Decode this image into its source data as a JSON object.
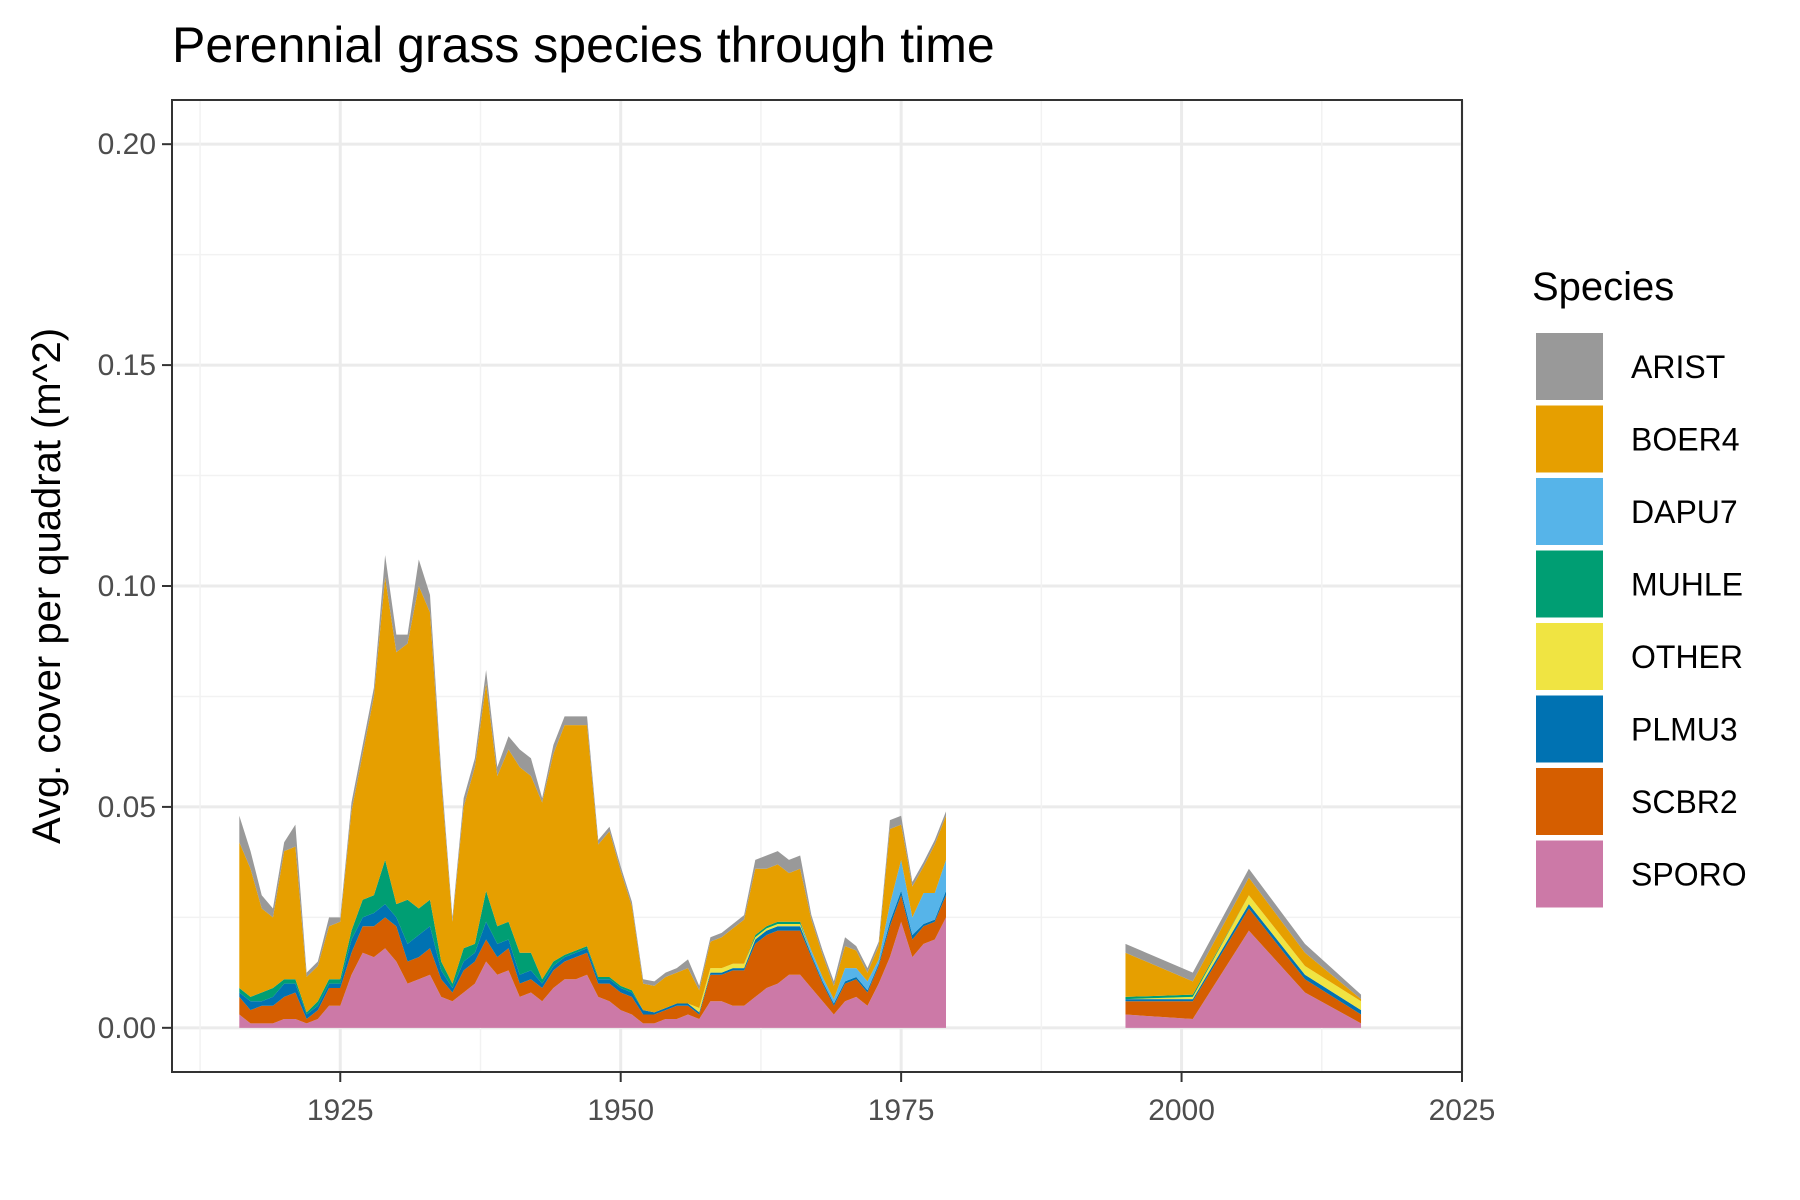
{
  "chart_data": {
    "type": "area",
    "stacked": true,
    "title": "Perennial grass species through time",
    "xlabel": "",
    "ylabel": "Avg. cover per quadrat (m^2)",
    "xlim": [
      1910,
      2025
    ],
    "ylim": [
      -0.01,
      0.21
    ],
    "xticks": [
      1925,
      1950,
      1975,
      2000,
      2025
    ],
    "yticks": [
      0.0,
      0.05,
      0.1,
      0.15,
      0.2
    ],
    "ytick_labels": [
      "0.00",
      "0.05",
      "0.10",
      "0.15",
      "0.20"
    ],
    "grid": true,
    "legend": {
      "title": "Species",
      "position": "right"
    },
    "segments": [
      {
        "x": [
          1916,
          1917,
          1918,
          1919,
          1920,
          1921,
          1922,
          1923,
          1924,
          1925,
          1926,
          1927,
          1928,
          1929,
          1930,
          1931,
          1932,
          1933,
          1934,
          1935,
          1936,
          1937,
          1938,
          1939,
          1940,
          1941,
          1942,
          1943,
          1944,
          1945,
          1946,
          1947,
          1948,
          1949,
          1950,
          1951,
          1952,
          1953,
          1954,
          1955,
          1956,
          1957,
          1958,
          1959,
          1960,
          1961,
          1962,
          1963,
          1964,
          1965,
          1966,
          1967,
          1968,
          1969,
          1970,
          1971,
          1972,
          1973,
          1974,
          1975,
          1976,
          1977,
          1978,
          1979
        ]
      },
      {
        "x": [
          1995,
          2001,
          2006,
          2011,
          2016
        ]
      }
    ],
    "series": [
      {
        "name": "SPORO",
        "color": "#CC79A7",
        "values": [
          [
            0.003,
            0.001,
            0.001,
            0.001,
            0.002,
            0.002,
            0.001,
            0.002,
            0.005,
            0.005,
            0.012,
            0.017,
            0.016,
            0.018,
            0.015,
            0.01,
            0.011,
            0.012,
            0.007,
            0.006,
            0.008,
            0.01,
            0.015,
            0.012,
            0.013,
            0.007,
            0.008,
            0.006,
            0.009,
            0.011,
            0.011,
            0.012,
            0.007,
            0.006,
            0.004,
            0.003,
            0.001,
            0.001,
            0.002,
            0.002,
            0.003,
            0.002,
            0.006,
            0.006,
            0.005,
            0.005,
            0.007,
            0.009,
            0.01,
            0.012,
            0.012,
            0.009,
            0.006,
            0.003,
            0.006,
            0.007,
            0.005,
            0.01,
            0.016,
            0.024,
            0.016,
            0.019,
            0.02,
            0.025
          ],
          [
            0.003,
            0.002,
            0.022,
            0.008,
            0.001
          ]
        ]
      },
      {
        "name": "SCBR2",
        "color": "#D55E00",
        "values": [
          [
            0.004,
            0.003,
            0.004,
            0.004,
            0.005,
            0.006,
            0.001,
            0.002,
            0.004,
            0.004,
            0.005,
            0.006,
            0.007,
            0.007,
            0.008,
            0.005,
            0.005,
            0.006,
            0.004,
            0.002,
            0.005,
            0.005,
            0.005,
            0.004,
            0.005,
            0.003,
            0.003,
            0.003,
            0.004,
            0.004,
            0.005,
            0.005,
            0.003,
            0.004,
            0.004,
            0.004,
            0.002,
            0.002,
            0.002,
            0.003,
            0.002,
            0.001,
            0.006,
            0.006,
            0.008,
            0.008,
            0.012,
            0.012,
            0.012,
            0.01,
            0.01,
            0.007,
            0.004,
            0.002,
            0.004,
            0.004,
            0.003,
            0.004,
            0.007,
            0.006,
            0.004,
            0.004,
            0.004,
            0.005
          ],
          [
            0.003,
            0.004,
            0.005,
            0.003,
            0.002
          ]
        ]
      },
      {
        "name": "PLMU3",
        "color": "#0072B2",
        "values": [
          [
            0.001,
            0.002,
            0.001,
            0.002,
            0.003,
            0.002,
            0.001,
            0.001,
            0.001,
            0.001,
            0.003,
            0.002,
            0.003,
            0.003,
            0.002,
            0.004,
            0.005,
            0.005,
            0.002,
            0.001,
            0.002,
            0.002,
            0.004,
            0.003,
            0.002,
            0.002,
            0.002,
            0.001,
            0.001,
            0.001,
            0.001,
            0.001,
            0.001,
            0.001,
            0.001,
            0.001,
            0.001,
            0.0005,
            0.0005,
            0.0005,
            0.0005,
            0.0005,
            0.0005,
            0.0005,
            0.0005,
            0.0005,
            0.001,
            0.001,
            0.001,
            0.001,
            0.001,
            0.0005,
            0.0005,
            0.0005,
            0.0005,
            0.0005,
            0.0005,
            0.0005,
            0.001,
            0.001,
            0.001,
            0.0005,
            0.0005,
            0.001
          ],
          [
            0.0005,
            0.0005,
            0.001,
            0.001,
            0.001
          ]
        ]
      },
      {
        "name": "OTHER",
        "color": "#F0E442",
        "values": [
          [
            0.0,
            0.0,
            0.0,
            0.0,
            0.0,
            0.0,
            0.0,
            0.0,
            0.0,
            0.0,
            0.0,
            0.0,
            0.0,
            0.0,
            0.0,
            0.0,
            0.0,
            0.0,
            0.0,
            0.0,
            0.0,
            0.0,
            0.0,
            0.0,
            0.0,
            0.0,
            0.0,
            0.0,
            0.0,
            0.0,
            0.0,
            0.0,
            0.0,
            0.0,
            0.0,
            0.0,
            0.0,
            0.0,
            0.0,
            0.0,
            0.0,
            0.001,
            0.001,
            0.001,
            0.001,
            0.001,
            0.0005,
            0.0005,
            0.0005,
            0.0005,
            0.0005,
            0.0,
            0.0,
            0.0,
            0.0,
            0.0,
            0.0,
            0.0,
            0.0,
            0.0,
            0.0,
            0.0,
            0.0,
            0.0
          ],
          [
            0.0,
            0.0005,
            0.002,
            0.002,
            0.002
          ]
        ]
      },
      {
        "name": "MUHLE",
        "color": "#009E73",
        "values": [
          [
            0.001,
            0.001,
            0.002,
            0.002,
            0.001,
            0.001,
            0.0005,
            0.001,
            0.001,
            0.001,
            0.002,
            0.004,
            0.004,
            0.01,
            0.003,
            0.01,
            0.006,
            0.006,
            0.002,
            0.001,
            0.003,
            0.002,
            0.007,
            0.004,
            0.004,
            0.005,
            0.004,
            0.001,
            0.001,
            0.0005,
            0.0005,
            0.0005,
            0.0005,
            0.0005,
            0.0005,
            0.0005,
            0.0,
            0.0,
            0.0,
            0.0,
            0.0,
            0.0,
            0.0,
            0.0,
            0.0,
            0.0,
            0.0005,
            0.0005,
            0.0005,
            0.0005,
            0.0005,
            0.0,
            0.0,
            0.0,
            0.0,
            0.0,
            0.0,
            0.0,
            0.0,
            0.0,
            0.0,
            0.0,
            0.0,
            0.0
          ],
          [
            0.0005,
            0.0005,
            0.0,
            0.0,
            0.0
          ]
        ]
      },
      {
        "name": "DAPU7",
        "color": "#56B4E9",
        "values": [
          [
            0.0,
            0.0,
            0.0,
            0.0,
            0.0,
            0.0,
            0.0,
            0.0,
            0.0,
            0.0,
            0.0,
            0.0,
            0.0,
            0.0,
            0.0,
            0.0,
            0.0,
            0.0,
            0.0,
            0.0,
            0.0,
            0.0,
            0.0,
            0.0,
            0.0,
            0.0,
            0.0,
            0.0,
            0.0,
            0.0,
            0.0,
            0.0,
            0.0,
            0.0,
            0.0,
            0.0,
            0.0,
            0.0,
            0.0,
            0.0,
            0.0,
            0.0,
            0.0,
            0.0,
            0.0,
            0.0,
            0.0,
            0.0,
            0.0,
            0.0,
            0.0,
            0.001,
            0.001,
            0.001,
            0.003,
            0.002,
            0.002,
            0.001,
            0.004,
            0.007,
            0.004,
            0.007,
            0.006,
            0.007
          ],
          [
            0.0,
            0.0,
            0.0,
            0.0,
            0.0
          ]
        ]
      },
      {
        "name": "BOER4",
        "color": "#E69F00",
        "values": [
          [
            0.033,
            0.029,
            0.019,
            0.016,
            0.029,
            0.03,
            0.008,
            0.008,
            0.012,
            0.013,
            0.027,
            0.033,
            0.045,
            0.064,
            0.057,
            0.058,
            0.073,
            0.065,
            0.041,
            0.014,
            0.032,
            0.04,
            0.047,
            0.034,
            0.039,
            0.042,
            0.04,
            0.04,
            0.047,
            0.052,
            0.051,
            0.05,
            0.03,
            0.033,
            0.026,
            0.019,
            0.006,
            0.006,
            0.007,
            0.007,
            0.008,
            0.004,
            0.006,
            0.007,
            0.008,
            0.01,
            0.015,
            0.013,
            0.013,
            0.011,
            0.012,
            0.007,
            0.005,
            0.003,
            0.005,
            0.004,
            0.002,
            0.003,
            0.017,
            0.008,
            0.007,
            0.006,
            0.011,
            0.01
          ],
          [
            0.01,
            0.003,
            0.004,
            0.003,
            0.0005
          ]
        ]
      },
      {
        "name": "ARIST",
        "color": "#999999",
        "values": [
          [
            0.006,
            0.004,
            0.003,
            0.002,
            0.002,
            0.005,
            0.001,
            0.001,
            0.002,
            0.001,
            0.002,
            0.002,
            0.002,
            0.005,
            0.004,
            0.002,
            0.006,
            0.004,
            0.002,
            0.001,
            0.002,
            0.002,
            0.003,
            0.002,
            0.003,
            0.004,
            0.004,
            0.001,
            0.002,
            0.002,
            0.002,
            0.002,
            0.001,
            0.001,
            0.001,
            0.001,
            0.001,
            0.001,
            0.001,
            0.001,
            0.002,
            0.001,
            0.001,
            0.001,
            0.001,
            0.001,
            0.002,
            0.003,
            0.003,
            0.003,
            0.003,
            0.001,
            0.001,
            0.001,
            0.002,
            0.001,
            0.001,
            0.001,
            0.002,
            0.002,
            0.001,
            0.001,
            0.001,
            0.001
          ],
          [
            0.002,
            0.002,
            0.002,
            0.002,
            0.001
          ]
        ]
      }
    ],
    "legend_order": [
      "ARIST",
      "BOER4",
      "DAPU7",
      "MUHLE",
      "OTHER",
      "PLMU3",
      "SCBR2",
      "SPORO"
    ]
  }
}
